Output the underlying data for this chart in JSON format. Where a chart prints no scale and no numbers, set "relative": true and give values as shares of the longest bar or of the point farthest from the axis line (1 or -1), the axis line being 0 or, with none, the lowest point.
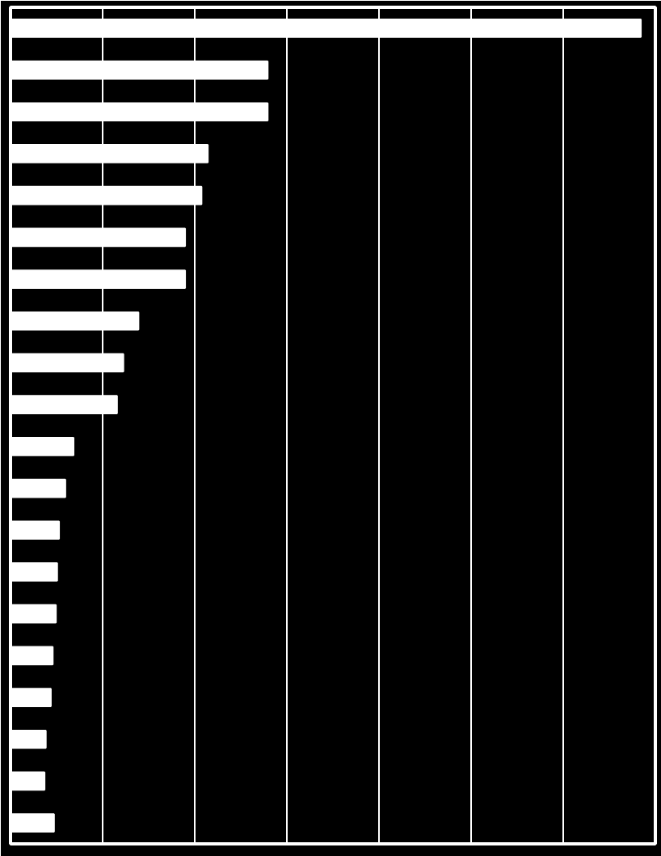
{
  "chart_data": {
    "type": "bar",
    "orientation": "horizontal",
    "relative": true,
    "grid": "x",
    "color": "#ffffff",
    "categories": [
      null,
      null,
      null,
      null,
      null,
      null,
      null,
      null,
      null,
      null,
      null,
      null,
      null,
      null,
      null,
      null,
      null,
      null,
      null,
      null
    ],
    "values": [
      1,
      0.408,
      0.408,
      0.313,
      0.303,
      0.277,
      0.277,
      0.203,
      0.179,
      0.169,
      0.1,
      0.087,
      0.077,
      0.074,
      0.072,
      0.067,
      0.064,
      0.056,
      0.054,
      0.069
    ]
  }
}
